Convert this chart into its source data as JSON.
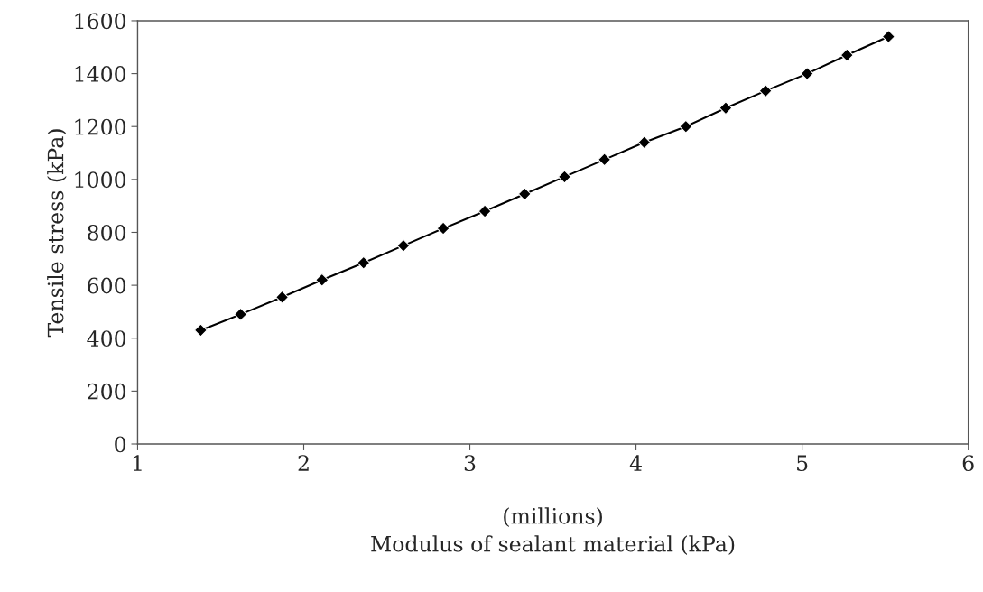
{
  "chart_data": {
    "type": "line",
    "xlabel": "Modulus of sealant material (kPa)",
    "ylabel": "Tensile stress (kPa)",
    "annotations": [
      "(millions)"
    ],
    "x": [
      1.38,
      1.62,
      1.87,
      2.11,
      2.36,
      2.6,
      2.84,
      3.09,
      3.33,
      3.57,
      3.81,
      4.05,
      4.3,
      4.54,
      4.78,
      5.03,
      5.27,
      5.52
    ],
    "series": [
      {
        "color": "#000000",
        "values": [
          430,
          490,
          555,
          620,
          685,
          750,
          815,
          880,
          945,
          1010,
          1075,
          1140,
          1200,
          1270,
          1335,
          1400,
          1470,
          1540
        ]
      }
    ],
    "xlim": [
      1,
      6
    ],
    "xticks": [
      1,
      2,
      3,
      4,
      5,
      6
    ],
    "ylim": [
      0,
      1600
    ],
    "yticks": [
      0,
      200,
      400,
      600,
      800,
      1000,
      1200,
      1400,
      1600
    ],
    "marker": "diamond",
    "line_style": "solid",
    "grid": false,
    "legend": false
  }
}
